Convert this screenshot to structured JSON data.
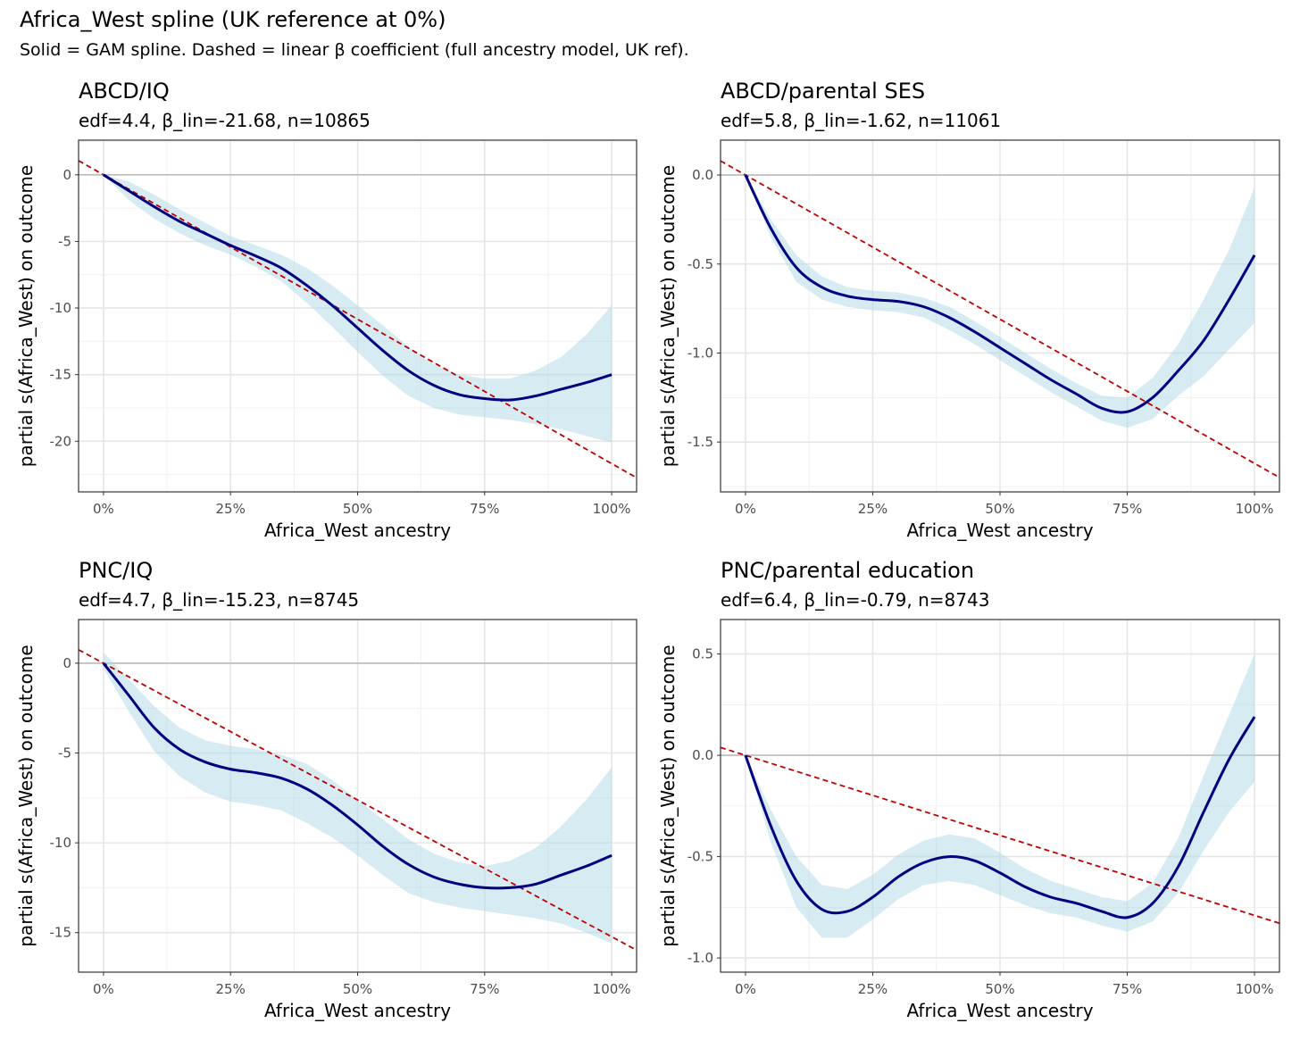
{
  "chart_data": {
    "title": "Africa_West spline (UK reference at 0%)",
    "subtitle": "Solid = GAM spline. Dashed = linear β coefficient (full ancestry model, UK ref).",
    "colors": {
      "spline": "#000080",
      "ribbon": "#add8e6",
      "linear": "#c00000",
      "reference": "#bdbdbd"
    },
    "panels": [
      {
        "type": "line",
        "title": "ABCD/IQ",
        "subtitle": "edf=4.4, β_lin=-21.68, n=10865",
        "xlabel": "Africa_West ancestry",
        "ylabel": "partial s(Africa_West) on outcome",
        "xlim": [
          -4.9,
          104.9
        ],
        "ylim": [
          -23.8,
          2.6
        ],
        "x_ticks": [
          0,
          25,
          50,
          75,
          100
        ],
        "x_tick_labels": [
          "0%",
          "25%",
          "50%",
          "75%",
          "100%"
        ],
        "y_ticks": [
          0,
          -5,
          -10,
          -15,
          -20
        ],
        "y_tick_labels": [
          "0",
          "-5",
          "-10",
          "-15",
          "-20"
        ],
        "beta_lin": -21.68,
        "x": [
          0,
          5,
          10,
          15,
          20,
          25,
          30,
          35,
          40,
          45,
          50,
          55,
          60,
          65,
          70,
          75,
          80,
          85,
          90,
          95,
          100
        ],
        "spline": [
          0,
          -1.2,
          -2.4,
          -3.5,
          -4.4,
          -5.3,
          -6.1,
          -7.0,
          -8.3,
          -9.8,
          -11.5,
          -13.2,
          -14.7,
          -15.8,
          -16.5,
          -16.8,
          -16.9,
          -16.6,
          -16.1,
          -15.6,
          -15.0
        ],
        "upper": [
          0,
          -0.5,
          -1.5,
          -2.6,
          -3.6,
          -4.6,
          -5.3,
          -6.0,
          -7.0,
          -8.3,
          -9.8,
          -11.3,
          -12.9,
          -14.2,
          -15.0,
          -15.3,
          -15.3,
          -14.7,
          -13.7,
          -12.0,
          -9.8
        ],
        "lower": [
          0,
          -1.9,
          -3.3,
          -4.4,
          -5.3,
          -6.0,
          -6.9,
          -8.0,
          -9.6,
          -11.4,
          -13.3,
          -15.1,
          -16.6,
          -17.5,
          -18.0,
          -18.2,
          -18.4,
          -18.7,
          -19.1,
          -19.6,
          -20.1
        ]
      },
      {
        "type": "line",
        "title": "ABCD/parental SES",
        "subtitle": "edf=5.8, β_lin=-1.62, n=11061",
        "xlabel": "Africa_West ancestry",
        "ylabel": "partial s(Africa_West) on outcome",
        "xlim": [
          -4.9,
          104.9
        ],
        "ylim": [
          -1.78,
          0.196
        ],
        "x_ticks": [
          0,
          25,
          50,
          75,
          100
        ],
        "x_tick_labels": [
          "0%",
          "25%",
          "50%",
          "75%",
          "100%"
        ],
        "y_ticks": [
          0,
          -0.5,
          -1.0,
          -1.5
        ],
        "y_tick_labels": [
          "0.0",
          "-0.5",
          "-1.0",
          "-1.5"
        ],
        "beta_lin": -1.62,
        "x": [
          0,
          5,
          10,
          15,
          20,
          25,
          30,
          35,
          40,
          45,
          50,
          55,
          60,
          65,
          70,
          75,
          80,
          85,
          90,
          95,
          100
        ],
        "spline": [
          0,
          -0.3,
          -0.52,
          -0.63,
          -0.68,
          -0.7,
          -0.71,
          -0.74,
          -0.8,
          -0.88,
          -0.97,
          -1.06,
          -1.15,
          -1.23,
          -1.31,
          -1.33,
          -1.25,
          -1.1,
          -0.93,
          -0.7,
          -0.45
        ],
        "upper": [
          0,
          -0.25,
          -0.45,
          -0.57,
          -0.63,
          -0.65,
          -0.66,
          -0.69,
          -0.74,
          -0.82,
          -0.91,
          -1.0,
          -1.09,
          -1.17,
          -1.24,
          -1.25,
          -1.14,
          -0.95,
          -0.7,
          -0.42,
          -0.07
        ],
        "lower": [
          0,
          -0.35,
          -0.6,
          -0.7,
          -0.74,
          -0.76,
          -0.77,
          -0.8,
          -0.87,
          -0.95,
          -1.04,
          -1.13,
          -1.22,
          -1.3,
          -1.38,
          -1.42,
          -1.37,
          -1.24,
          -1.13,
          -0.98,
          -0.83
        ]
      },
      {
        "type": "line",
        "title": "PNC/IQ",
        "subtitle": "edf=4.7, β_lin=-15.23, n=8745",
        "xlabel": "Africa_West ancestry",
        "ylabel": "partial s(Africa_West) on outcome",
        "xlim": [
          -4.9,
          104.9
        ],
        "ylim": [
          -17.2,
          2.43
        ],
        "x_ticks": [
          0,
          25,
          50,
          75,
          100
        ],
        "x_tick_labels": [
          "0%",
          "25%",
          "50%",
          "75%",
          "100%"
        ],
        "y_ticks": [
          0,
          -5,
          -10,
          -15
        ],
        "y_tick_labels": [
          "0",
          "-5",
          "-10",
          "-15"
        ],
        "beta_lin": -15.23,
        "x": [
          0,
          5,
          10,
          15,
          20,
          25,
          30,
          35,
          40,
          45,
          50,
          55,
          60,
          65,
          70,
          75,
          80,
          85,
          90,
          95,
          100
        ],
        "spline": [
          0,
          -1.8,
          -3.6,
          -4.8,
          -5.5,
          -5.9,
          -6.1,
          -6.4,
          -7.0,
          -7.9,
          -9.0,
          -10.2,
          -11.2,
          -11.9,
          -12.3,
          -12.5,
          -12.5,
          -12.3,
          -11.8,
          -11.3,
          -10.7
        ],
        "upper": [
          0.6,
          -0.9,
          -2.4,
          -3.6,
          -4.3,
          -4.6,
          -4.8,
          -5.1,
          -5.6,
          -6.5,
          -7.6,
          -8.7,
          -9.8,
          -10.6,
          -11.1,
          -11.3,
          -11.0,
          -10.3,
          -9.1,
          -7.6,
          -5.8
        ],
        "lower": [
          -0.3,
          -2.7,
          -4.9,
          -6.3,
          -7.2,
          -7.7,
          -7.9,
          -8.2,
          -8.9,
          -9.7,
          -10.7,
          -11.8,
          -12.8,
          -13.3,
          -13.6,
          -13.8,
          -14.0,
          -14.2,
          -14.5,
          -15.0,
          -15.6
        ]
      },
      {
        "type": "line",
        "title": "PNC/parental education",
        "subtitle": "edf=6.4, β_lin=-0.79, n=8743",
        "xlabel": "Africa_West ancestry",
        "ylabel": "partial s(Africa_West) on outcome",
        "xlim": [
          -4.9,
          104.9
        ],
        "ylim": [
          -1.07,
          0.67
        ],
        "x_ticks": [
          0,
          25,
          50,
          75,
          100
        ],
        "x_tick_labels": [
          "0%",
          "25%",
          "50%",
          "75%",
          "100%"
        ],
        "y_ticks": [
          0.5,
          0,
          -0.5,
          -1.0
        ],
        "y_tick_labels": [
          "0.5",
          "0.0",
          "-0.5",
          "-1.0"
        ],
        "beta_lin": -0.79,
        "x": [
          0,
          5,
          10,
          15,
          20,
          25,
          30,
          35,
          40,
          45,
          50,
          55,
          60,
          65,
          70,
          75,
          80,
          85,
          90,
          95,
          100
        ],
        "spline": [
          0,
          -0.35,
          -0.62,
          -0.76,
          -0.77,
          -0.7,
          -0.6,
          -0.53,
          -0.5,
          -0.52,
          -0.58,
          -0.65,
          -0.7,
          -0.73,
          -0.77,
          -0.8,
          -0.73,
          -0.55,
          -0.28,
          -0.02,
          0.19
        ],
        "upper": [
          0,
          -0.27,
          -0.5,
          -0.64,
          -0.66,
          -0.59,
          -0.49,
          -0.42,
          -0.39,
          -0.41,
          -0.48,
          -0.56,
          -0.62,
          -0.66,
          -0.7,
          -0.72,
          -0.63,
          -0.41,
          -0.1,
          0.2,
          0.5
        ],
        "lower": [
          0,
          -0.43,
          -0.75,
          -0.9,
          -0.9,
          -0.81,
          -0.71,
          -0.64,
          -0.62,
          -0.64,
          -0.69,
          -0.74,
          -0.78,
          -0.8,
          -0.84,
          -0.87,
          -0.82,
          -0.68,
          -0.47,
          -0.28,
          -0.13
        ]
      }
    ]
  }
}
